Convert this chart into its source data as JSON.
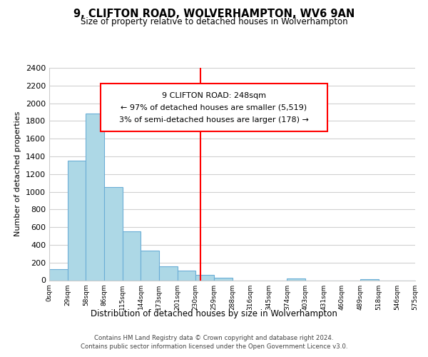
{
  "title": "9, CLIFTON ROAD, WOLVERHAMPTON, WV6 9AN",
  "subtitle": "Size of property relative to detached houses in Wolverhampton",
  "xlabel": "Distribution of detached houses by size in Wolverhampton",
  "ylabel": "Number of detached properties",
  "bin_labels": [
    "0sqm",
    "29sqm",
    "58sqm",
    "86sqm",
    "115sqm",
    "144sqm",
    "173sqm",
    "201sqm",
    "230sqm",
    "259sqm",
    "288sqm",
    "316sqm",
    "345sqm",
    "374sqm",
    "403sqm",
    "431sqm",
    "460sqm",
    "489sqm",
    "518sqm",
    "546sqm",
    "575sqm"
  ],
  "bar_values": [
    125,
    1350,
    1880,
    1050,
    550,
    335,
    160,
    110,
    60,
    25,
    0,
    0,
    0,
    20,
    0,
    0,
    0,
    15,
    0,
    0
  ],
  "bar_color": "#add8e6",
  "bar_edge_color": "#6baed6",
  "reference_line_x": 8.28,
  "reference_line_color": "red",
  "annotation_box_text": "9 CLIFTON ROAD: 248sqm\n← 97% of detached houses are smaller (5,519)\n3% of semi-detached houses are larger (178) →",
  "ylim": [
    0,
    2400
  ],
  "yticks": [
    0,
    200,
    400,
    600,
    800,
    1000,
    1200,
    1400,
    1600,
    1800,
    2000,
    2200,
    2400
  ],
  "footer_text": "Contains HM Land Registry data © Crown copyright and database right 2024.\nContains public sector information licensed under the Open Government Licence v3.0.",
  "bg_color": "#ffffff",
  "grid_color": "#d0d0d0"
}
